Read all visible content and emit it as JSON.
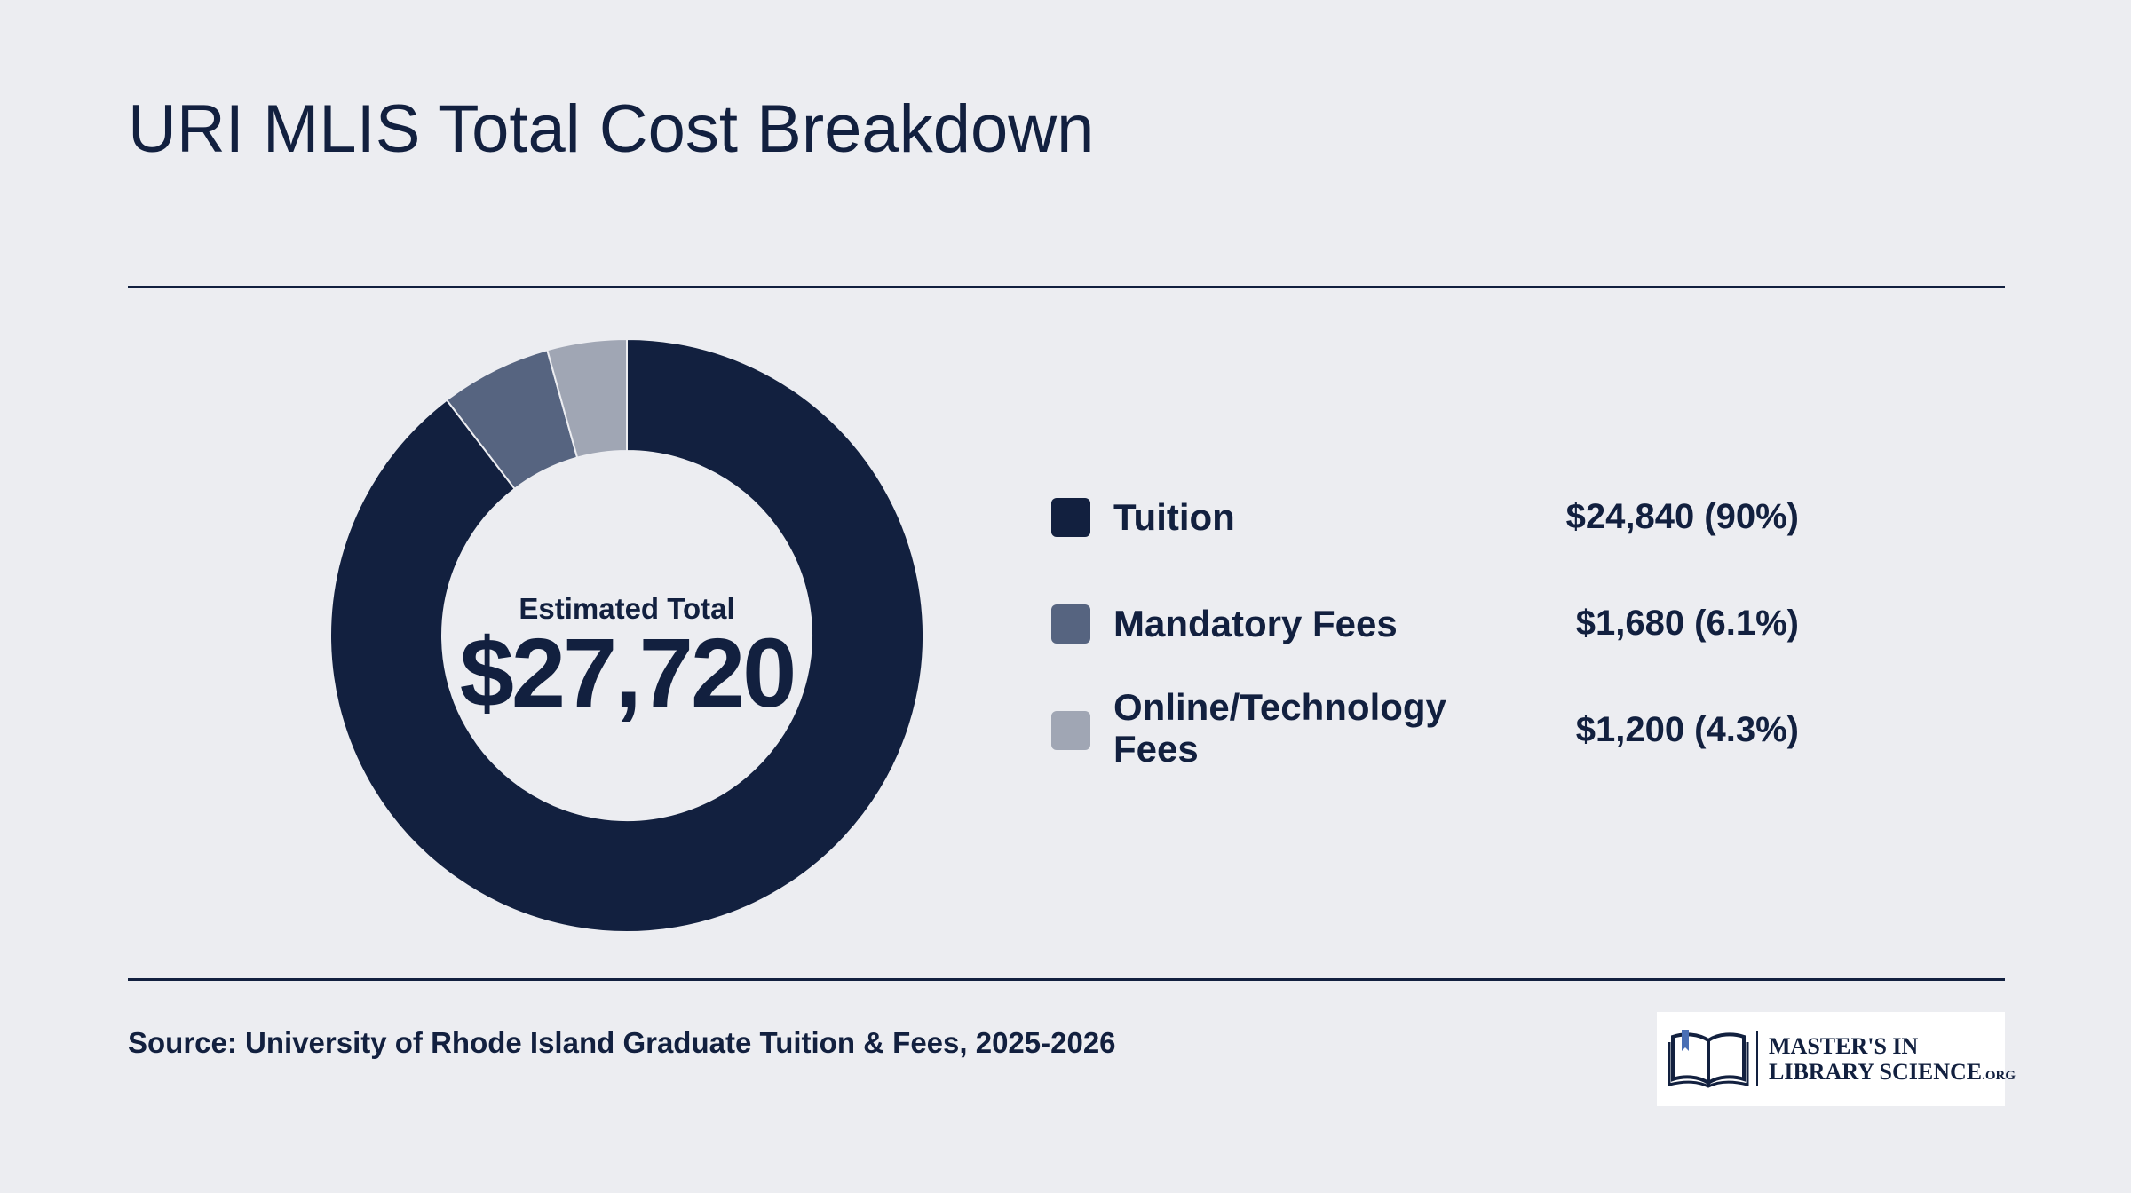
{
  "title": "URI MLIS Total Cost Breakdown",
  "center": {
    "label": "Estimated Total",
    "value": "$27,720"
  },
  "chart_data": {
    "type": "pie",
    "title": "URI MLIS Total Cost Breakdown",
    "total": 27720,
    "categories": [
      "Tuition",
      "Mandatory Fees",
      "Online/Technology Fees"
    ],
    "values": [
      24840,
      1680,
      1200
    ],
    "percent_labels": [
      "90%",
      "6.1%",
      "4.3%"
    ],
    "colors": [
      "#12203F",
      "#566480",
      "#A0A6B4"
    ],
    "legend_position": "right",
    "value_labels": [
      "$24,840 (90%)",
      "$1,680 (6.1%)",
      "$1,200 (4.3%)"
    ]
  },
  "legend": [
    {
      "label": "Tuition",
      "value": "$24,840 (90%)"
    },
    {
      "label": "Mandatory Fees",
      "value": "$1,680 (6.1%)"
    },
    {
      "label": "Online/Technology Fees",
      "value": "$1,200 (4.3%)"
    }
  ],
  "source": "Source: University of Rhode Island Graduate Tuition & Fees, 2025-2026",
  "logo": {
    "line1": "MASTER'S IN",
    "line2": "LIBRARY SCIENCE",
    "suffix": ".ORG"
  }
}
